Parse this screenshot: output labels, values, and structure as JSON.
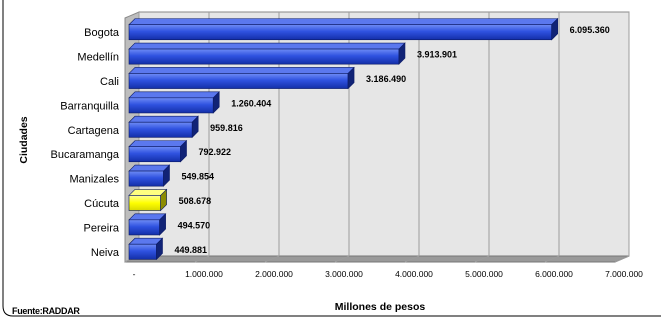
{
  "chart_data": {
    "type": "bar",
    "orientation": "horizontal",
    "title": "",
    "xlabel": "Millones de pesos",
    "ylabel": "Ciudades",
    "categories": [
      "Bogota",
      "Medellín",
      "Cali",
      "Barranquilla",
      "Cartagena",
      "Bucaramanga",
      "Manizales",
      "Cúcuta",
      "Pereira",
      "Neiva"
    ],
    "values": [
      6095360,
      3913901,
      3186490,
      1260404,
      959816,
      792922,
      549854,
      508678,
      494570,
      449881
    ],
    "value_labels": [
      "6.095.360",
      "3.913.901",
      "3.186.490",
      "1.260.404",
      "959.816",
      "792.922",
      "549.854",
      "508.678",
      "494.570",
      "449.881"
    ],
    "xlim": [
      0,
      7000000
    ],
    "xticks": [
      "-",
      "1.000.000",
      "2.000.000",
      "3.000.000",
      "4.000.000",
      "5.000.000",
      "6.000.000",
      "7.000.000"
    ],
    "grid": true,
    "legend": "none",
    "highlight_category": "Cúcuta",
    "colors": {
      "bar": "#1f3fd6",
      "bar_highlight": "#ffff00",
      "plot_bg": "#e6e6e6",
      "border": "#000000"
    }
  },
  "source": "Fuente:RADDAR"
}
